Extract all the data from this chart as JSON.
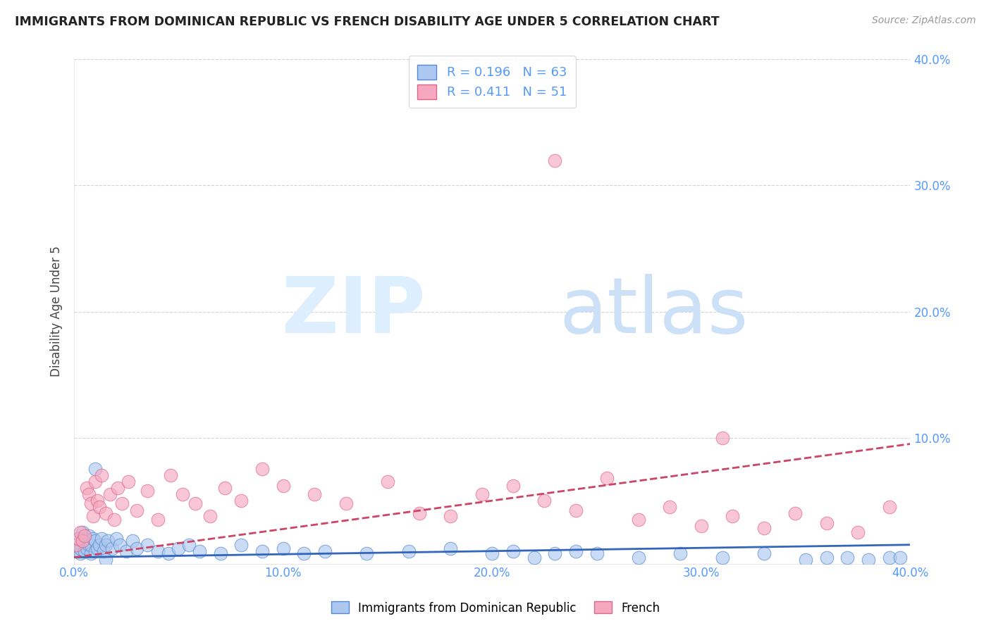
{
  "title": "IMMIGRANTS FROM DOMINICAN REPUBLIC VS FRENCH DISABILITY AGE UNDER 5 CORRELATION CHART",
  "source": "Source: ZipAtlas.com",
  "ylabel": "Disability Age Under 5",
  "xlim": [
    0.0,
    0.4
  ],
  "ylim": [
    0.0,
    0.4
  ],
  "xtick_vals": [
    0.0,
    0.1,
    0.2,
    0.3,
    0.4
  ],
  "ytick_vals": [
    0.0,
    0.1,
    0.2,
    0.3,
    0.4
  ],
  "xtick_labels": [
    "0.0%",
    "10.0%",
    "20.0%",
    "30.0%",
    "40.0%"
  ],
  "ytick_labels": [
    "",
    "10.0%",
    "20.0%",
    "30.0%",
    "40.0%"
  ],
  "blue_R": 0.196,
  "blue_N": 63,
  "pink_R": 0.411,
  "pink_N": 51,
  "blue_color": "#adc8f0",
  "pink_color": "#f5a8c0",
  "blue_edge_color": "#5588cc",
  "pink_edge_color": "#dd6688",
  "blue_line_color": "#3366bb",
  "pink_line_color": "#cc4466",
  "axis_color": "#5599ff",
  "grid_color": "#c8c8c8",
  "watermark_color_zip": "#ddeeff",
  "watermark_color_atlas": "#cce0f8",
  "background_color": "#ffffff",
  "blue_line_y0": 0.005,
  "blue_line_y1": 0.015,
  "pink_line_y0": 0.005,
  "pink_line_y1": 0.095,
  "blue_x": [
    0.001,
    0.002,
    0.002,
    0.003,
    0.003,
    0.004,
    0.004,
    0.005,
    0.005,
    0.006,
    0.006,
    0.007,
    0.007,
    0.008,
    0.008,
    0.009,
    0.01,
    0.01,
    0.011,
    0.012,
    0.013,
    0.014,
    0.015,
    0.016,
    0.018,
    0.02,
    0.022,
    0.025,
    0.028,
    0.03,
    0.035,
    0.04,
    0.045,
    0.05,
    0.055,
    0.06,
    0.07,
    0.08,
    0.09,
    0.1,
    0.11,
    0.12,
    0.14,
    0.16,
    0.18,
    0.2,
    0.21,
    0.22,
    0.23,
    0.24,
    0.25,
    0.27,
    0.29,
    0.31,
    0.33,
    0.35,
    0.36,
    0.37,
    0.38,
    0.39,
    0.395,
    0.01,
    0.015
  ],
  "blue_y": [
    0.01,
    0.015,
    0.02,
    0.008,
    0.012,
    0.018,
    0.025,
    0.01,
    0.02,
    0.012,
    0.018,
    0.015,
    0.022,
    0.008,
    0.015,
    0.02,
    0.01,
    0.018,
    0.012,
    0.015,
    0.02,
    0.01,
    0.015,
    0.018,
    0.012,
    0.02,
    0.015,
    0.01,
    0.018,
    0.012,
    0.015,
    0.01,
    0.008,
    0.012,
    0.015,
    0.01,
    0.008,
    0.015,
    0.01,
    0.012,
    0.008,
    0.01,
    0.008,
    0.01,
    0.012,
    0.008,
    0.01,
    0.005,
    0.008,
    0.01,
    0.008,
    0.005,
    0.008,
    0.005,
    0.008,
    0.003,
    0.005,
    0.005,
    0.003,
    0.005,
    0.005,
    0.075,
    0.003
  ],
  "pink_x": [
    0.001,
    0.002,
    0.003,
    0.004,
    0.005,
    0.006,
    0.007,
    0.008,
    0.009,
    0.01,
    0.011,
    0.012,
    0.013,
    0.015,
    0.017,
    0.019,
    0.021,
    0.023,
    0.026,
    0.03,
    0.035,
    0.04,
    0.046,
    0.052,
    0.058,
    0.065,
    0.072,
    0.08,
    0.09,
    0.1,
    0.115,
    0.13,
    0.15,
    0.165,
    0.18,
    0.195,
    0.21,
    0.225,
    0.24,
    0.255,
    0.27,
    0.285,
    0.3,
    0.315,
    0.33,
    0.345,
    0.36,
    0.375,
    0.39,
    0.31,
    0.23
  ],
  "pink_y": [
    0.015,
    0.02,
    0.025,
    0.018,
    0.022,
    0.06,
    0.055,
    0.048,
    0.038,
    0.065,
    0.05,
    0.045,
    0.07,
    0.04,
    0.055,
    0.035,
    0.06,
    0.048,
    0.065,
    0.042,
    0.058,
    0.035,
    0.07,
    0.055,
    0.048,
    0.038,
    0.06,
    0.05,
    0.075,
    0.062,
    0.055,
    0.048,
    0.065,
    0.04,
    0.038,
    0.055,
    0.062,
    0.05,
    0.042,
    0.068,
    0.035,
    0.045,
    0.03,
    0.038,
    0.028,
    0.04,
    0.032,
    0.025,
    0.045,
    0.1,
    0.32
  ]
}
